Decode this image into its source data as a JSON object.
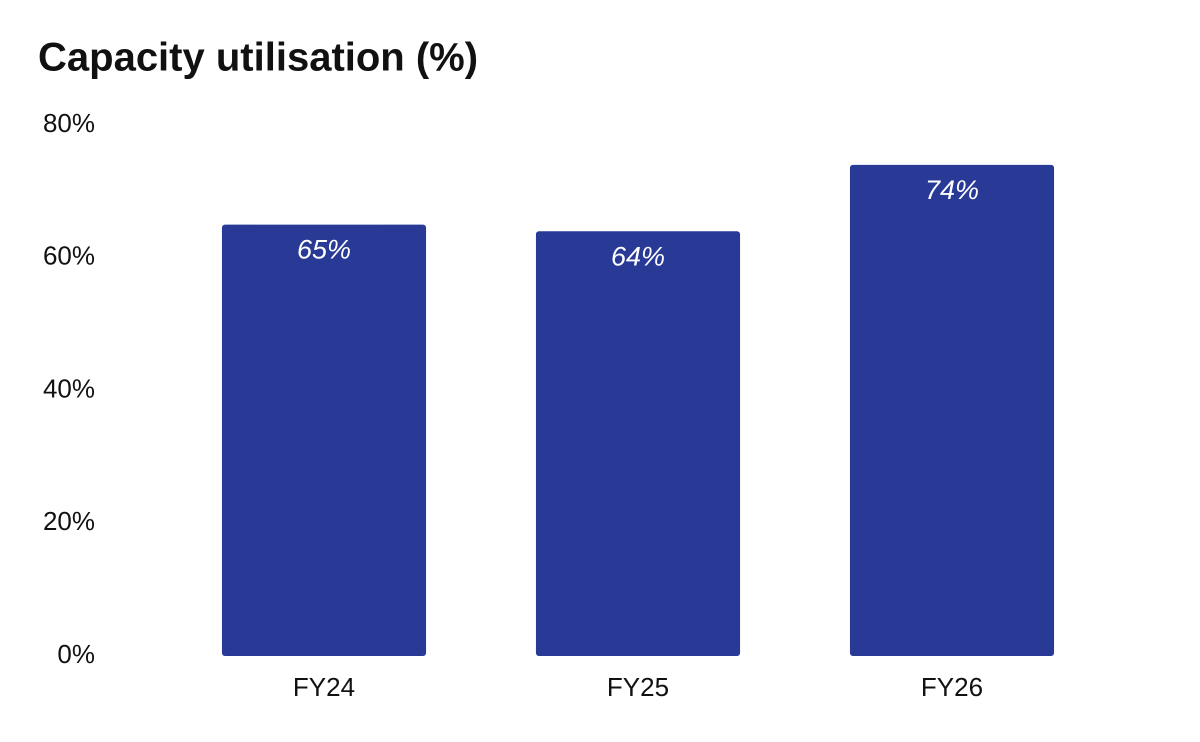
{
  "chart_data": {
    "type": "bar",
    "title": "Capacity utilisation (%)",
    "categories": [
      "FY24",
      "FY25",
      "FY26"
    ],
    "values": [
      65,
      64,
      74
    ],
    "value_labels": [
      "65%",
      "64%",
      "74%"
    ],
    "color": "#283a96",
    "ylim": [
      0,
      80
    ],
    "yticks": [
      {
        "value": 0,
        "label": "0%"
      },
      {
        "value": 20,
        "label": "20%"
      },
      {
        "value": 40,
        "label": "40%"
      },
      {
        "value": 60,
        "label": "60%"
      },
      {
        "value": 80,
        "label": "80%"
      }
    ],
    "grid": false
  }
}
